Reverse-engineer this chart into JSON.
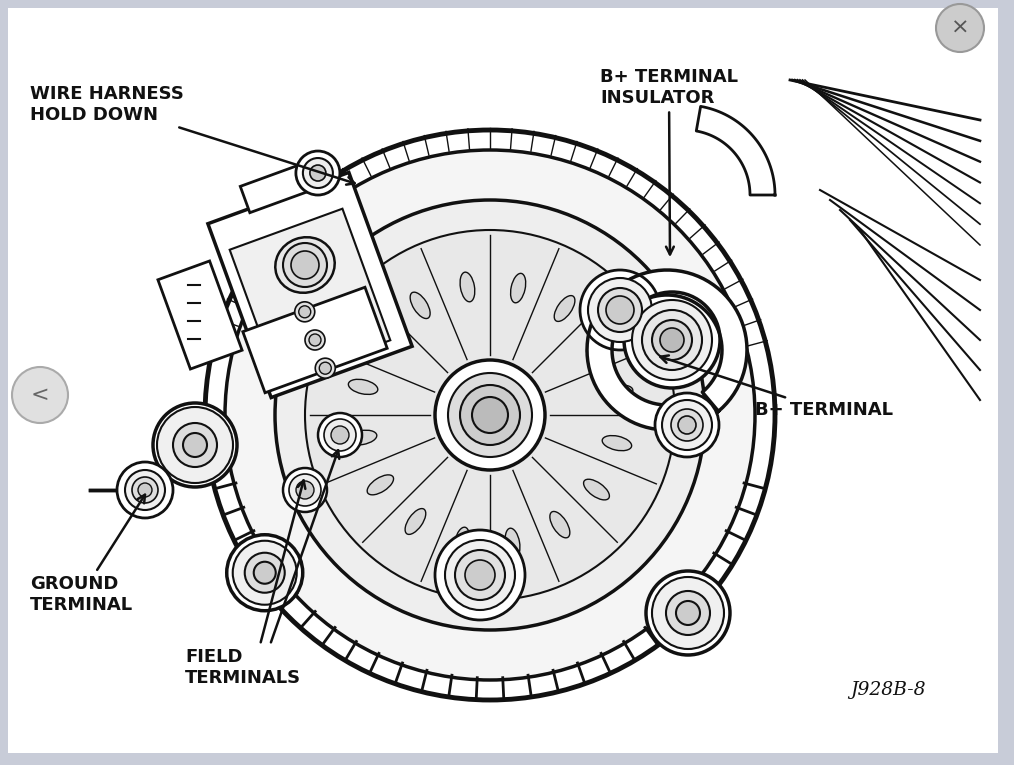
{
  "bg_color": "#c8ccd8",
  "white": "#ffffff",
  "black": "#111111",
  "gray_light": "#e8e8e8",
  "gray_nav": "#d0d0d0",
  "labels": {
    "wire_harness": "WIRE HARNESS\nHOLD DOWN",
    "b_plus_insulator": "B+ TERMINAL\nINSULATOR",
    "b_plus_terminal": "B+ TERMINAL",
    "ground_terminal": "GROUND\nTERMINAL",
    "field_terminals": "FIELD\nTERMINALS",
    "part_number": "J928B-8"
  },
  "font_size": 12.5,
  "font_size_part": 13.5
}
